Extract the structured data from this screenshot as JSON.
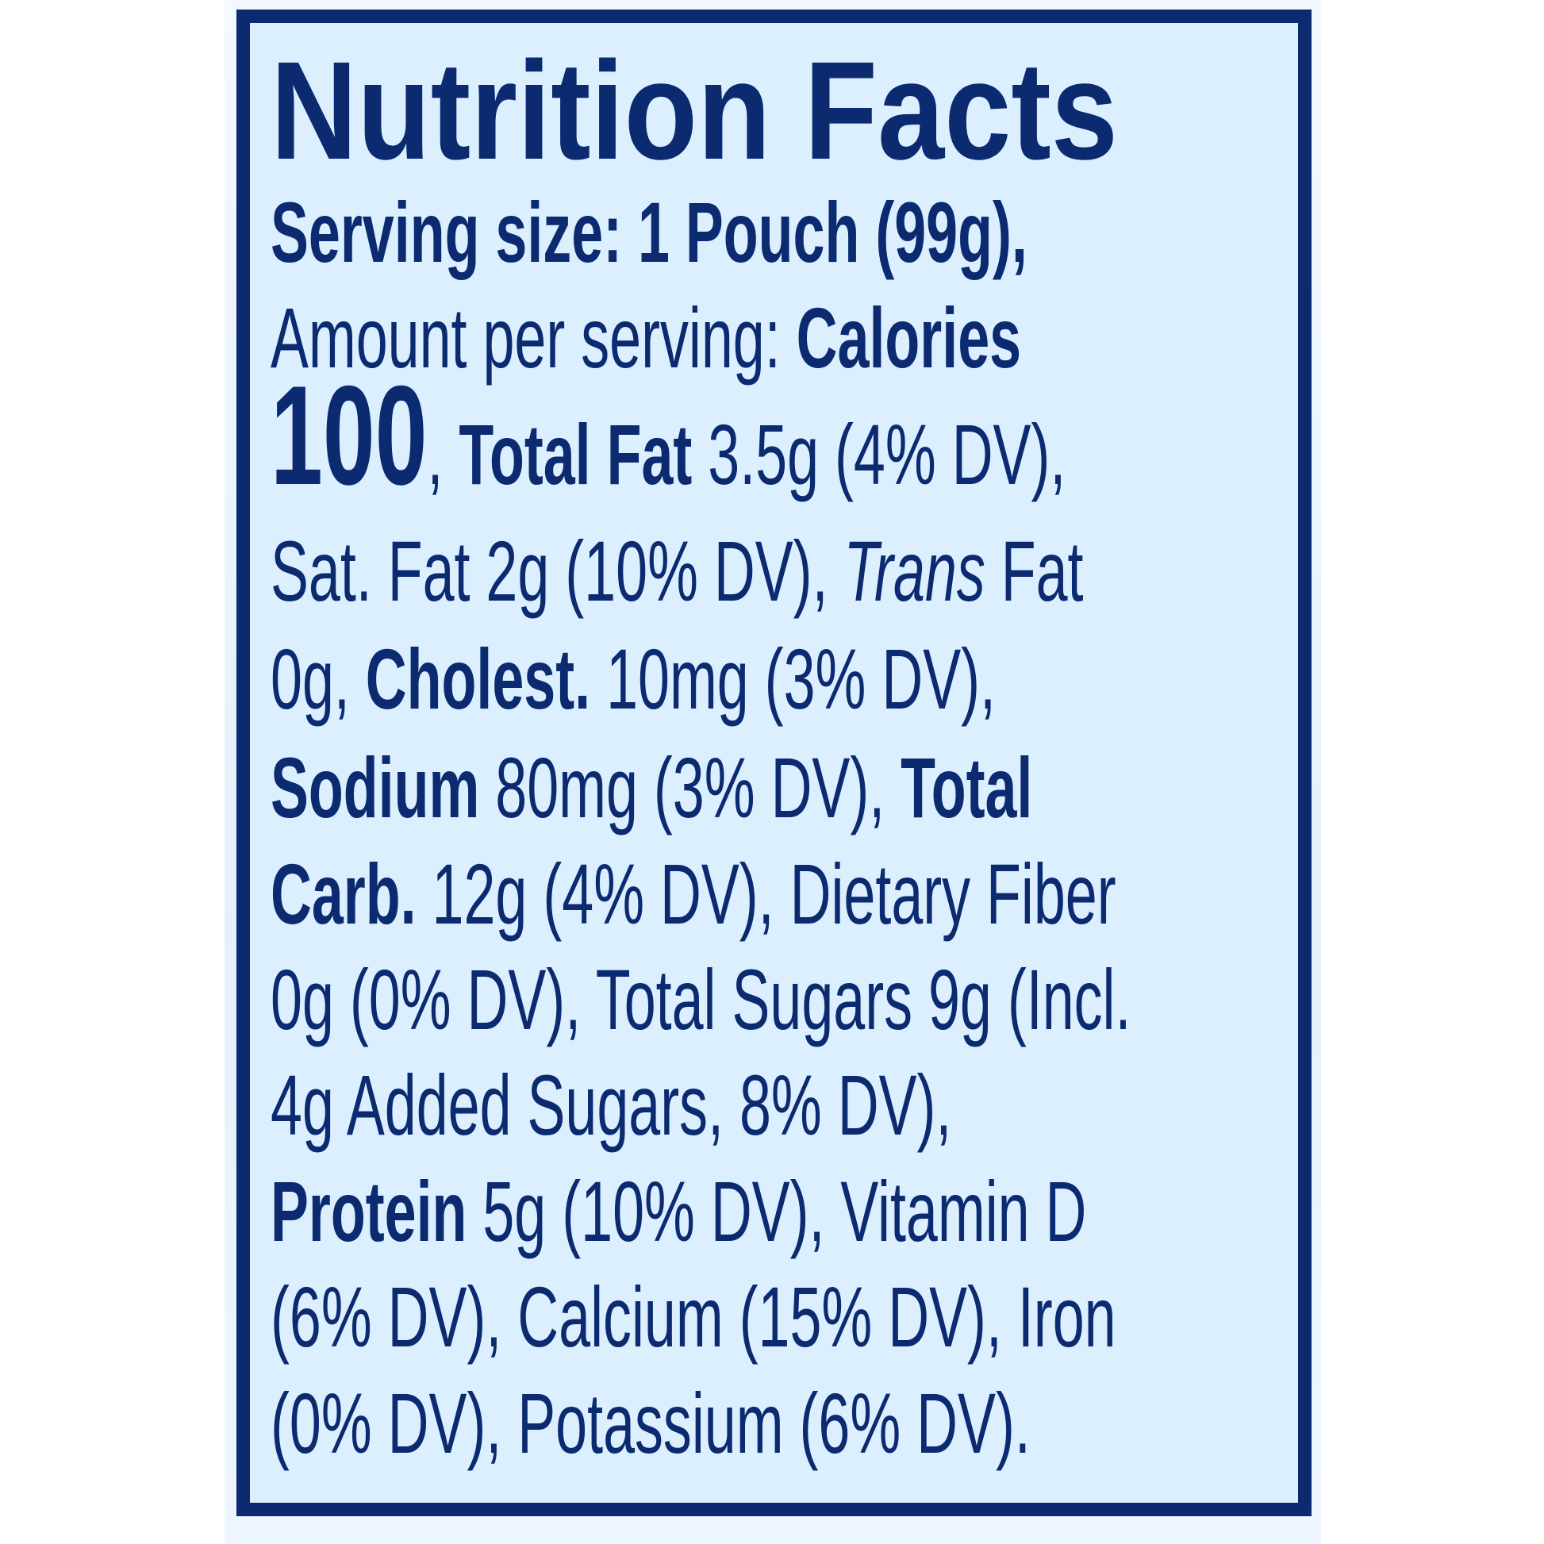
{
  "colors": {
    "text": "#0b2a6f",
    "border": "#0b2a6f",
    "background": "#dcefff"
  },
  "title": "Nutrition Facts",
  "lines": [
    [
      {
        "t": "Serving size: 1 Pouch (99g),",
        "s": "b"
      }
    ],
    [
      {
        "t": "Amount per serving: ",
        "s": ""
      },
      {
        "t": "Calories",
        "s": "b"
      }
    ],
    [
      {
        "t": "100",
        "s": "big"
      },
      {
        "t": ", ",
        "s": ""
      },
      {
        "t": "Total Fat",
        "s": "b"
      },
      {
        "t": " 3.5g (4% DV),",
        "s": ""
      }
    ],
    [
      {
        "t": "Sat. Fat 2g (10% DV), ",
        "s": ""
      },
      {
        "t": "Trans",
        "s": "i"
      },
      {
        "t": " Fat",
        "s": ""
      }
    ],
    [
      {
        "t": "0g, ",
        "s": ""
      },
      {
        "t": "Cholest.",
        "s": "b"
      },
      {
        "t": " 10mg (3% DV),",
        "s": ""
      }
    ],
    [
      {
        "t": "Sodium",
        "s": "b"
      },
      {
        "t": " 80mg (3% DV), ",
        "s": ""
      },
      {
        "t": "Total",
        "s": "b"
      }
    ],
    [
      {
        "t": "Carb.",
        "s": "b"
      },
      {
        "t": " 12g (4% DV), Dietary Fiber",
        "s": ""
      }
    ],
    [
      {
        "t": "0g (0% DV), Total Sugars 9g (Incl.",
        "s": ""
      }
    ],
    [
      {
        "t": "4g Added Sugars, 8% DV),",
        "s": ""
      }
    ],
    [
      {
        "t": "Protein",
        "s": "b"
      },
      {
        "t": " 5g (10% DV), Vitamin D",
        "s": ""
      }
    ],
    [
      {
        "t": "(6% DV), Calcium (15% DV), Iron",
        "s": ""
      }
    ],
    [
      {
        "t": "(0% DV), Potassium (6% DV).",
        "s": ""
      }
    ]
  ]
}
